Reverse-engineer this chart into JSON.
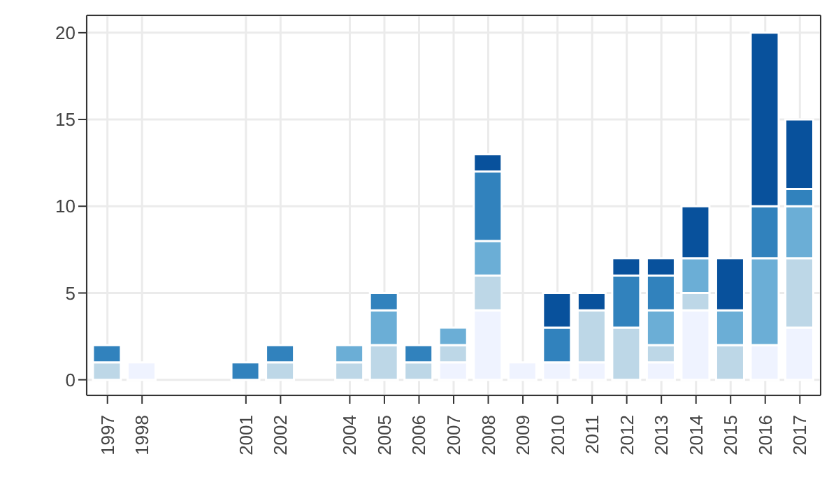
{
  "chart_data": {
    "type": "bar",
    "stacked": true,
    "grid": true,
    "categories": [
      "1997",
      "1998",
      null,
      null,
      "2001",
      "2002",
      null,
      "2004",
      "2005",
      "2006",
      "2007",
      "2008",
      "2009",
      "2010",
      "2011",
      "2012",
      "2013",
      "2014",
      "2015",
      "2016",
      "2017"
    ],
    "ylim": [
      -0.9,
      21
    ],
    "yticks": [
      0,
      5,
      10,
      15,
      20
    ],
    "series": [
      {
        "color": "#eff3ff",
        "values": [
          0,
          1,
          null,
          null,
          0,
          0,
          null,
          0,
          0,
          0,
          1,
          4,
          1,
          1,
          1,
          0,
          1,
          4,
          0,
          2,
          3
        ]
      },
      {
        "color": "#bdd7e7",
        "values": [
          1,
          0,
          null,
          null,
          0,
          1,
          null,
          1,
          2,
          1,
          1,
          2,
          0,
          0,
          3,
          3,
          1,
          1,
          2,
          0,
          4
        ]
      },
      {
        "color": "#6baed6",
        "values": [
          0,
          0,
          null,
          null,
          0,
          0,
          null,
          1,
          2,
          0,
          1,
          2,
          0,
          0,
          0,
          0,
          2,
          2,
          2,
          5,
          3
        ]
      },
      {
        "color": "#3182bd",
        "values": [
          1,
          0,
          null,
          null,
          1,
          1,
          null,
          0,
          1,
          1,
          0,
          4,
          0,
          2,
          0,
          3,
          2,
          0,
          0,
          3,
          1
        ]
      },
      {
        "color": "#08519c",
        "values": [
          0,
          0,
          null,
          null,
          0,
          0,
          null,
          0,
          0,
          0,
          0,
          1,
          0,
          2,
          1,
          1,
          1,
          3,
          3,
          10,
          4
        ]
      }
    ]
  }
}
